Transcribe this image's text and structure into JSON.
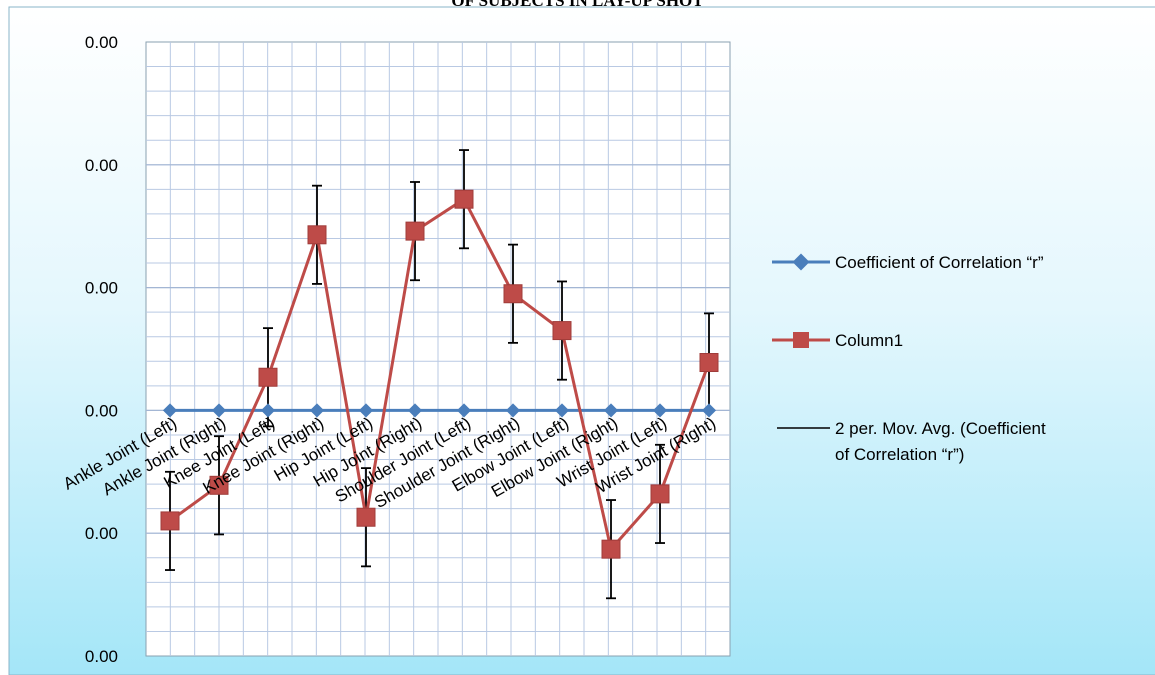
{
  "chart_data": {
    "type": "line",
    "title": "OF SUBJECTS IN LAY-UP SHOT",
    "categories": [
      "Ankle Joint (Left)",
      "Ankle Joint (Right)",
      "Knee Joint (Left)",
      "Knee Joint (Right)",
      "Hip Joint (Left)",
      "Hip Joint (Right)",
      "Shoulder Joint (Left)",
      "Shoulder Joint (Right)",
      "Elbow Joint (Left)",
      "Elbow Joint (Right)",
      "Wrist Joint (Left)",
      "Wrist Joint (Right)"
    ],
    "y_tick_labels": [
      "0.00",
      "0.00",
      "0.00",
      "0.00",
      "0.00",
      "0.00"
    ],
    "ylim": [
      -2,
      3
    ],
    "series": [
      {
        "name": "Coefficient of Correlation “r”",
        "color": "#4a7ebb",
        "marker": "diamond",
        "values": [
          0,
          0,
          0,
          0,
          0,
          0,
          0,
          0,
          0,
          0,
          0,
          0
        ]
      },
      {
        "name": "Column1",
        "color": "#be4b48",
        "marker": "square",
        "values": [
          -0.9,
          -0.61,
          0.27,
          1.43,
          -0.87,
          1.46,
          1.72,
          0.95,
          0.65,
          -1.13,
          -0.68,
          0.39
        ],
        "error": 0.4
      }
    ],
    "trendline": {
      "name": "2 per. Mov. Avg. (Coefficient of Correlation “r”)",
      "color": "#000000"
    },
    "legend_position": "right",
    "grid": true
  }
}
